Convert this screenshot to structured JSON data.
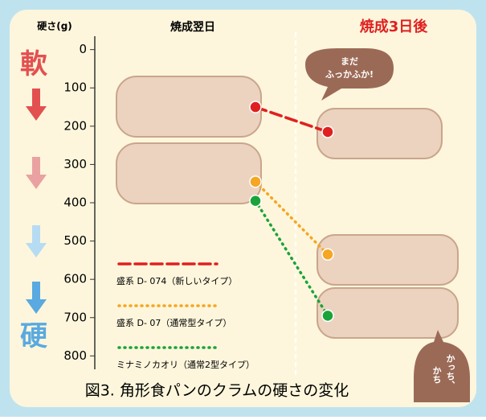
{
  "chart_data": {
    "type": "line",
    "title": "図3. 角形食パンのクラムの硬さの変化",
    "y_label": "硬さ(g)",
    "categories": [
      "焼成翌日",
      "焼成3日後"
    ],
    "series": [
      {
        "name": "盛系 D- 074（新しいタイプ）",
        "color": "#e02020",
        "style": "dashed",
        "values": [
          150,
          215
        ]
      },
      {
        "name": "盛系 D- 07（通常型タイプ）",
        "color": "#f5a623",
        "style": "dotted",
        "values": [
          345,
          535
        ]
      },
      {
        "name": "ミナミノカオリ（通常2型タイプ）",
        "color": "#1aa33a",
        "style": "dotted",
        "values": [
          395,
          695
        ]
      }
    ],
    "ylim": [
      -35,
      835
    ],
    "y_inverted": true,
    "yticks": [
      0,
      100,
      200,
      300,
      400,
      500,
      600,
      700,
      800
    ],
    "side_labels": {
      "soft": "軟",
      "hard": "硬"
    },
    "bubbles": {
      "fresh": [
        "まだ",
        "ふっかふか!"
      ],
      "hard": [
        "かっち、",
        "かち"
      ]
    }
  }
}
